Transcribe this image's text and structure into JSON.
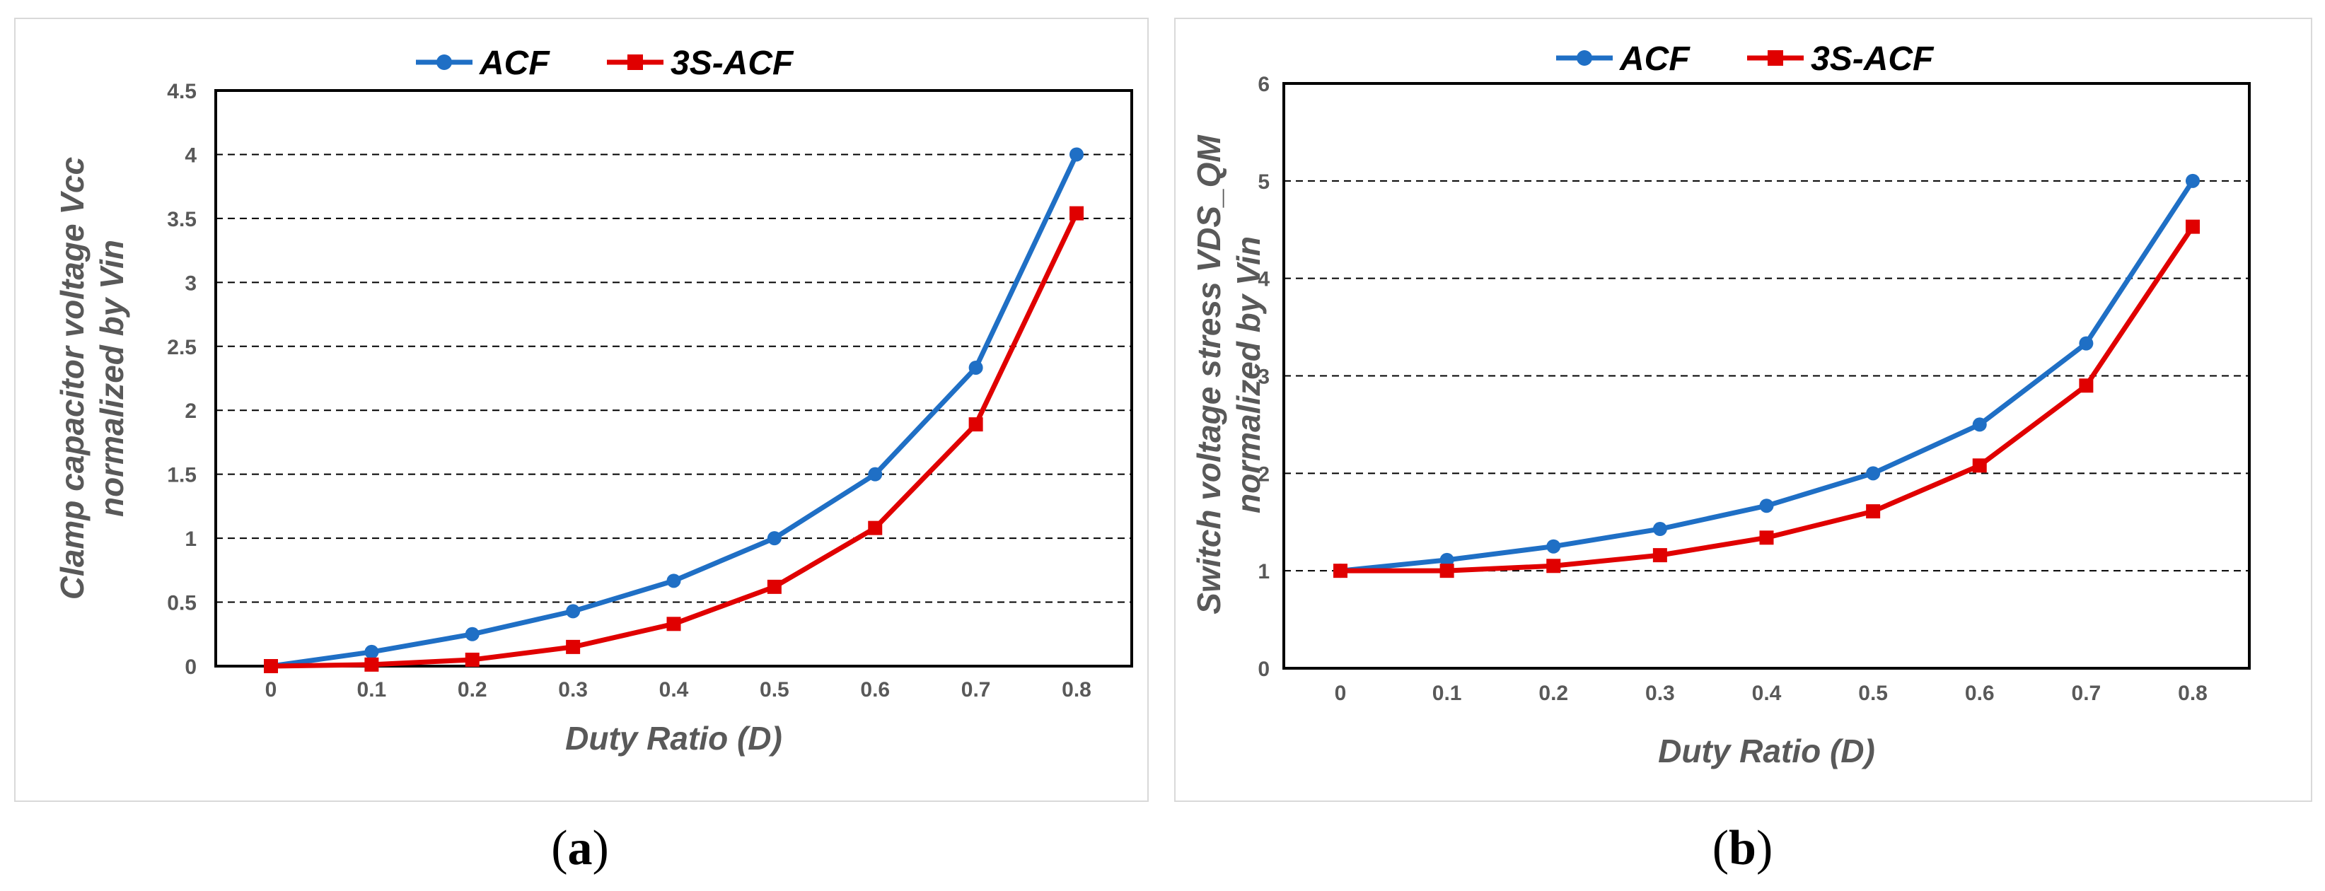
{
  "chart_data": [
    {
      "panel": "a",
      "type": "line",
      "caption": "(a)",
      "caption_letter": "a",
      "x": [
        0,
        0.1,
        0.2,
        0.3,
        0.4,
        0.5,
        0.6,
        0.7,
        0.8
      ],
      "x_tick_labels": [
        "0",
        "0.1",
        "0.2",
        "0.3",
        "0.4",
        "0.5",
        "0.6",
        "0.7",
        "0.8"
      ],
      "y_ticks": [
        0,
        0.5,
        1,
        1.5,
        2,
        2.5,
        3,
        3.5,
        4,
        4.5
      ],
      "y_tick_labels": [
        "0",
        "0.5",
        "1",
        "1.5",
        "2",
        "2.5",
        "3",
        "3.5",
        "4",
        "4.5"
      ],
      "ylim": [
        0,
        4.5
      ],
      "xlabel": "Duty Ratio (D)",
      "ylabel_line1": "Clamp capacitor voltage Vcc",
      "ylabel_line2": "normalized by Vin",
      "legend_position": "top",
      "grid": "horizontal-dashed",
      "series": [
        {
          "name": "ACF",
          "color": "#1f6fc5",
          "marker": "circle",
          "values": [
            0,
            0.111,
            0.25,
            0.429,
            0.667,
            1.0,
            1.5,
            2.333,
            4.0
          ]
        },
        {
          "name": "3S-ACF",
          "color": "#e00000",
          "marker": "square",
          "values": [
            0,
            0.012,
            0.05,
            0.15,
            0.33,
            0.62,
            1.08,
            1.89,
            3.54
          ]
        }
      ]
    },
    {
      "panel": "b",
      "type": "line",
      "caption": "(b)",
      "caption_letter": "b",
      "x": [
        0,
        0.1,
        0.2,
        0.3,
        0.4,
        0.5,
        0.6,
        0.7,
        0.8
      ],
      "x_tick_labels": [
        "0",
        "0.1",
        "0.2",
        "0.3",
        "0.4",
        "0.5",
        "0.6",
        "0.7",
        "0.8"
      ],
      "y_ticks": [
        0,
        1,
        2,
        3,
        4,
        5,
        6
      ],
      "y_tick_labels": [
        "0",
        "1",
        "2",
        "3",
        "4",
        "5",
        "6"
      ],
      "ylim": [
        0,
        6
      ],
      "xlabel": "Duty Ratio (D)",
      "ylabel_line1": "Switch voltage stress VDS_QM",
      "ylabel_line2": "normalized by Vin",
      "legend_position": "top",
      "grid": "horizontal-dashed",
      "series": [
        {
          "name": "ACF",
          "color": "#1f6fc5",
          "marker": "circle",
          "values": [
            1.0,
            1.111,
            1.25,
            1.429,
            1.667,
            2.0,
            2.5,
            3.333,
            5.0
          ]
        },
        {
          "name": "3S-ACF",
          "color": "#e00000",
          "marker": "square",
          "values": [
            1.0,
            1.0,
            1.05,
            1.16,
            1.34,
            1.61,
            2.08,
            2.9,
            4.53
          ]
        }
      ]
    }
  ]
}
